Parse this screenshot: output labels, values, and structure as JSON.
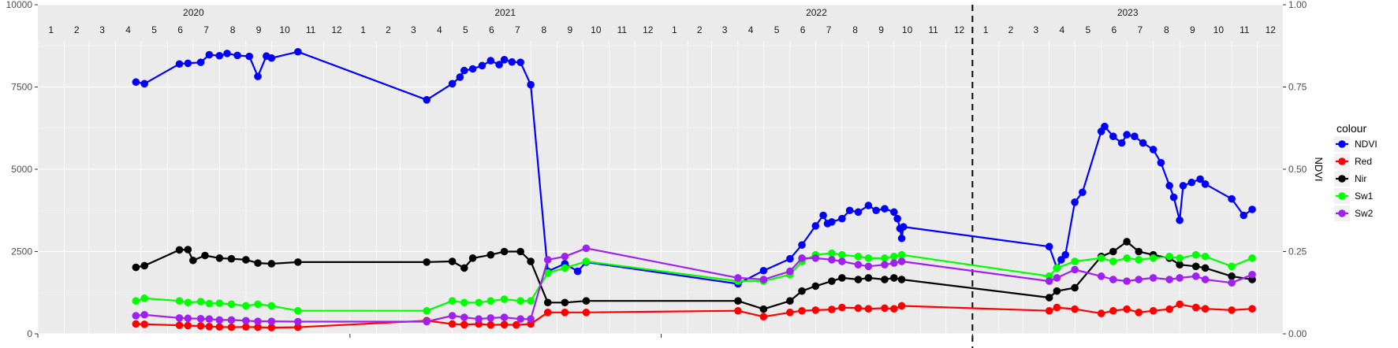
{
  "chart_data": {
    "type": "line",
    "xlim": [
      "2020-01-01",
      "2023-12-31"
    ],
    "ylim": [
      0,
      10000
    ],
    "y_ticks": [
      0,
      2500,
      5000,
      7500,
      10000
    ],
    "y_tick_labels": [
      "0",
      "2500",
      "5000",
      "7500",
      "10000"
    ],
    "y2_label": "NDVI",
    "y2_ticks": [
      0,
      0.25,
      0.5,
      0.75,
      1.0
    ],
    "y2_tick_labels": [
      "0.00",
      "0.25",
      "0.50",
      "0.75",
      "1.00"
    ],
    "years": [
      "2020",
      "2021",
      "2022",
      "2023"
    ],
    "months": [
      "1",
      "2",
      "3",
      "4",
      "5",
      "6",
      "7",
      "8",
      "9",
      "10",
      "11",
      "12"
    ],
    "vline_date": "2023-01-01",
    "grid": true,
    "legend_title": "colour",
    "legend_position": "right",
    "series": [
      {
        "name": "NDVI",
        "color": "#0000ff",
        "axis": "NDVI",
        "points": [
          [
            "2020-04-25",
            0.765
          ],
          [
            "2020-05-05",
            0.76
          ],
          [
            "2020-06-15",
            0.82
          ],
          [
            "2020-06-25",
            0.822
          ],
          [
            "2020-07-10",
            0.825
          ],
          [
            "2020-07-20",
            0.848
          ],
          [
            "2020-08-01",
            0.845
          ],
          [
            "2020-08-10",
            0.852
          ],
          [
            "2020-08-22",
            0.846
          ],
          [
            "2020-09-05",
            0.843
          ],
          [
            "2020-09-15",
            0.782
          ],
          [
            "2020-09-25",
            0.844
          ],
          [
            "2020-10-01",
            0.838
          ],
          [
            "2020-11-01",
            0.857
          ],
          [
            "2021-04-01",
            0.711
          ],
          [
            "2021-05-01",
            0.76
          ],
          [
            "2021-05-10",
            0.78
          ],
          [
            "2021-05-15",
            0.8
          ],
          [
            "2021-05-25",
            0.805
          ],
          [
            "2021-06-05",
            0.815
          ],
          [
            "2021-06-15",
            0.83
          ],
          [
            "2021-06-25",
            0.818
          ],
          [
            "2021-07-01",
            0.833
          ],
          [
            "2021-07-10",
            0.826
          ],
          [
            "2021-07-20",
            0.825
          ],
          [
            "2021-08-01",
            0.757
          ],
          [
            "2021-08-21",
            0.19
          ],
          [
            "2021-09-10",
            0.213
          ],
          [
            "2021-09-25",
            0.19
          ],
          [
            "2021-10-05",
            0.218
          ],
          [
            "2022-04-01",
            0.152
          ],
          [
            "2022-05-01",
            0.192
          ],
          [
            "2022-06-01",
            0.228
          ],
          [
            "2022-06-15",
            0.27
          ],
          [
            "2022-07-01",
            0.328
          ],
          [
            "2022-07-10",
            0.36
          ],
          [
            "2022-07-15",
            0.335
          ],
          [
            "2022-07-20",
            0.34
          ],
          [
            "2022-08-01",
            0.35
          ],
          [
            "2022-08-10",
            0.375
          ],
          [
            "2022-08-20",
            0.37
          ],
          [
            "2022-09-01",
            0.39
          ],
          [
            "2022-09-10",
            0.375
          ],
          [
            "2022-09-20",
            0.38
          ],
          [
            "2022-10-01",
            0.37
          ],
          [
            "2022-10-05",
            0.35
          ],
          [
            "2022-10-08",
            0.32
          ],
          [
            "2022-10-10",
            0.29
          ],
          [
            "2022-10-12",
            0.325
          ],
          [
            "2023-04-01",
            0.265
          ],
          [
            "2023-04-10",
            0.2
          ],
          [
            "2023-04-15",
            0.225
          ],
          [
            "2023-04-20",
            0.24
          ],
          [
            "2023-05-01",
            0.4
          ],
          [
            "2023-05-10",
            0.43
          ],
          [
            "2023-06-01",
            0.615
          ],
          [
            "2023-06-05",
            0.63
          ],
          [
            "2023-06-15",
            0.6
          ],
          [
            "2023-06-25",
            0.58
          ],
          [
            "2023-07-01",
            0.605
          ],
          [
            "2023-07-10",
            0.6
          ],
          [
            "2023-07-20",
            0.58
          ],
          [
            "2023-08-01",
            0.56
          ],
          [
            "2023-08-10",
            0.52
          ],
          [
            "2023-08-20",
            0.45
          ],
          [
            "2023-08-25",
            0.415
          ],
          [
            "2023-09-01",
            0.345
          ],
          [
            "2023-09-05",
            0.45
          ],
          [
            "2023-09-15",
            0.46
          ],
          [
            "2023-09-25",
            0.47
          ],
          [
            "2023-10-01",
            0.455
          ],
          [
            "2023-11-01",
            0.41
          ],
          [
            "2023-11-15",
            0.36
          ],
          [
            "2023-11-25",
            0.378
          ]
        ]
      },
      {
        "name": "Red",
        "color": "#ff0000",
        "axis": "left",
        "points": [
          [
            "2020-04-25",
            300
          ],
          [
            "2020-05-05",
            290
          ],
          [
            "2020-06-15",
            260
          ],
          [
            "2020-06-25",
            250
          ],
          [
            "2020-07-10",
            240
          ],
          [
            "2020-07-20",
            220
          ],
          [
            "2020-08-01",
            210
          ],
          [
            "2020-08-15",
            200
          ],
          [
            "2020-09-01",
            210
          ],
          [
            "2020-09-15",
            200
          ],
          [
            "2020-10-01",
            190
          ],
          [
            "2020-11-01",
            200
          ],
          [
            "2021-04-01",
            400
          ],
          [
            "2021-05-01",
            300
          ],
          [
            "2021-05-15",
            280
          ],
          [
            "2021-06-01",
            300
          ],
          [
            "2021-06-15",
            270
          ],
          [
            "2021-07-01",
            280
          ],
          [
            "2021-07-15",
            270
          ],
          [
            "2021-08-01",
            300
          ],
          [
            "2021-08-21",
            650
          ],
          [
            "2021-09-10",
            650
          ],
          [
            "2021-10-05",
            650
          ],
          [
            "2022-04-01",
            700
          ],
          [
            "2022-05-01",
            520
          ],
          [
            "2022-06-01",
            650
          ],
          [
            "2022-06-15",
            700
          ],
          [
            "2022-07-01",
            720
          ],
          [
            "2022-07-20",
            740
          ],
          [
            "2022-08-01",
            800
          ],
          [
            "2022-08-20",
            780
          ],
          [
            "2022-09-01",
            760
          ],
          [
            "2022-09-20",
            780
          ],
          [
            "2022-10-01",
            760
          ],
          [
            "2022-10-10",
            850
          ],
          [
            "2023-04-01",
            700
          ],
          [
            "2023-04-10",
            800
          ],
          [
            "2023-05-01",
            750
          ],
          [
            "2023-06-01",
            620
          ],
          [
            "2023-06-15",
            700
          ],
          [
            "2023-07-01",
            750
          ],
          [
            "2023-07-15",
            650
          ],
          [
            "2023-08-01",
            700
          ],
          [
            "2023-08-20",
            750
          ],
          [
            "2023-09-01",
            900
          ],
          [
            "2023-09-20",
            800
          ],
          [
            "2023-10-01",
            760
          ],
          [
            "2023-11-01",
            720
          ],
          [
            "2023-11-25",
            760
          ]
        ]
      },
      {
        "name": "Nir",
        "color": "#000000",
        "axis": "left",
        "points": [
          [
            "2020-04-25",
            2020
          ],
          [
            "2020-05-05",
            2070
          ],
          [
            "2020-06-15",
            2550
          ],
          [
            "2020-06-25",
            2560
          ],
          [
            "2020-07-01",
            2230
          ],
          [
            "2020-07-15",
            2380
          ],
          [
            "2020-08-01",
            2300
          ],
          [
            "2020-08-15",
            2280
          ],
          [
            "2020-09-01",
            2250
          ],
          [
            "2020-09-15",
            2150
          ],
          [
            "2020-10-01",
            2130
          ],
          [
            "2020-11-01",
            2180
          ],
          [
            "2021-04-01",
            2180
          ],
          [
            "2021-05-01",
            2200
          ],
          [
            "2021-05-15",
            2000
          ],
          [
            "2021-05-25",
            2300
          ],
          [
            "2021-06-15",
            2400
          ],
          [
            "2021-07-01",
            2500
          ],
          [
            "2021-07-20",
            2500
          ],
          [
            "2021-08-01",
            2200
          ],
          [
            "2021-08-21",
            950
          ],
          [
            "2021-09-10",
            950
          ],
          [
            "2021-10-05",
            1000
          ],
          [
            "2022-04-01",
            1000
          ],
          [
            "2022-05-01",
            750
          ],
          [
            "2022-06-01",
            1000
          ],
          [
            "2022-06-15",
            1300
          ],
          [
            "2022-07-01",
            1450
          ],
          [
            "2022-07-20",
            1600
          ],
          [
            "2022-08-01",
            1700
          ],
          [
            "2022-08-20",
            1650
          ],
          [
            "2022-09-01",
            1700
          ],
          [
            "2022-09-20",
            1650
          ],
          [
            "2022-10-01",
            1700
          ],
          [
            "2022-10-10",
            1650
          ],
          [
            "2023-04-01",
            1100
          ],
          [
            "2023-04-10",
            1300
          ],
          [
            "2023-05-01",
            1400
          ],
          [
            "2023-06-01",
            2350
          ],
          [
            "2023-06-15",
            2500
          ],
          [
            "2023-07-01",
            2800
          ],
          [
            "2023-07-15",
            2500
          ],
          [
            "2023-08-01",
            2400
          ],
          [
            "2023-08-20",
            2300
          ],
          [
            "2023-09-01",
            2100
          ],
          [
            "2023-09-20",
            2050
          ],
          [
            "2023-10-01",
            2000
          ],
          [
            "2023-11-01",
            1750
          ],
          [
            "2023-11-25",
            1650
          ]
        ]
      },
      {
        "name": "Sw1",
        "color": "#00ff00",
        "axis": "left",
        "points": [
          [
            "2020-04-25",
            1000
          ],
          [
            "2020-05-05",
            1080
          ],
          [
            "2020-06-15",
            1000
          ],
          [
            "2020-06-25",
            950
          ],
          [
            "2020-07-10",
            980
          ],
          [
            "2020-07-20",
            920
          ],
          [
            "2020-08-01",
            930
          ],
          [
            "2020-08-15",
            900
          ],
          [
            "2020-09-01",
            850
          ],
          [
            "2020-09-15",
            900
          ],
          [
            "2020-10-01",
            850
          ],
          [
            "2020-11-01",
            700
          ],
          [
            "2021-04-01",
            700
          ],
          [
            "2021-05-01",
            1000
          ],
          [
            "2021-05-15",
            950
          ],
          [
            "2021-06-01",
            950
          ],
          [
            "2021-06-15",
            1000
          ],
          [
            "2021-07-01",
            1050
          ],
          [
            "2021-07-20",
            1000
          ],
          [
            "2021-08-01",
            1000
          ],
          [
            "2021-08-21",
            1850
          ],
          [
            "2021-09-10",
            2000
          ],
          [
            "2021-10-05",
            2200
          ],
          [
            "2022-04-01",
            1600
          ],
          [
            "2022-05-01",
            1600
          ],
          [
            "2022-06-01",
            1800
          ],
          [
            "2022-06-15",
            2200
          ],
          [
            "2022-07-01",
            2400
          ],
          [
            "2022-07-20",
            2450
          ],
          [
            "2022-08-01",
            2400
          ],
          [
            "2022-08-20",
            2350
          ],
          [
            "2022-09-01",
            2300
          ],
          [
            "2022-09-20",
            2300
          ],
          [
            "2022-10-01",
            2350
          ],
          [
            "2022-10-10",
            2400
          ],
          [
            "2023-04-01",
            1750
          ],
          [
            "2023-04-10",
            2000
          ],
          [
            "2023-05-01",
            2200
          ],
          [
            "2023-06-01",
            2300
          ],
          [
            "2023-06-15",
            2200
          ],
          [
            "2023-07-01",
            2300
          ],
          [
            "2023-07-15",
            2250
          ],
          [
            "2023-08-01",
            2300
          ],
          [
            "2023-08-20",
            2350
          ],
          [
            "2023-09-01",
            2300
          ],
          [
            "2023-09-20",
            2400
          ],
          [
            "2023-10-01",
            2350
          ],
          [
            "2023-11-01",
            2050
          ],
          [
            "2023-11-25",
            2300
          ]
        ]
      },
      {
        "name": "Sw2",
        "color": "#a020f0",
        "axis": "left",
        "points": [
          [
            "2020-04-25",
            550
          ],
          [
            "2020-05-05",
            580
          ],
          [
            "2020-06-15",
            480
          ],
          [
            "2020-06-25",
            470
          ],
          [
            "2020-07-10",
            460
          ],
          [
            "2020-07-20",
            450
          ],
          [
            "2020-08-01",
            420
          ],
          [
            "2020-08-15",
            420
          ],
          [
            "2020-09-01",
            400
          ],
          [
            "2020-09-15",
            380
          ],
          [
            "2020-10-01",
            380
          ],
          [
            "2020-11-01",
            370
          ],
          [
            "2021-04-01",
            370
          ],
          [
            "2021-05-01",
            550
          ],
          [
            "2021-05-15",
            500
          ],
          [
            "2021-06-01",
            450
          ],
          [
            "2021-06-15",
            480
          ],
          [
            "2021-07-01",
            500
          ],
          [
            "2021-07-20",
            450
          ],
          [
            "2021-08-01",
            450
          ],
          [
            "2021-08-21",
            2250
          ],
          [
            "2021-09-10",
            2350
          ],
          [
            "2021-10-05",
            2600
          ],
          [
            "2022-04-01",
            1700
          ],
          [
            "2022-05-01",
            1650
          ],
          [
            "2022-06-01",
            1900
          ],
          [
            "2022-06-15",
            2300
          ],
          [
            "2022-07-01",
            2300
          ],
          [
            "2022-07-20",
            2250
          ],
          [
            "2022-08-01",
            2200
          ],
          [
            "2022-08-20",
            2100
          ],
          [
            "2022-09-01",
            2050
          ],
          [
            "2022-09-20",
            2100
          ],
          [
            "2022-10-01",
            2150
          ],
          [
            "2022-10-10",
            2200
          ],
          [
            "2023-04-01",
            1600
          ],
          [
            "2023-04-10",
            1700
          ],
          [
            "2023-05-01",
            1950
          ],
          [
            "2023-06-01",
            1750
          ],
          [
            "2023-06-15",
            1650
          ],
          [
            "2023-07-01",
            1600
          ],
          [
            "2023-07-15",
            1650
          ],
          [
            "2023-08-01",
            1700
          ],
          [
            "2023-08-20",
            1650
          ],
          [
            "2023-09-01",
            1700
          ],
          [
            "2023-09-20",
            1750
          ],
          [
            "2023-10-01",
            1650
          ],
          [
            "2023-11-01",
            1550
          ],
          [
            "2023-11-25",
            1800
          ]
        ]
      }
    ]
  }
}
